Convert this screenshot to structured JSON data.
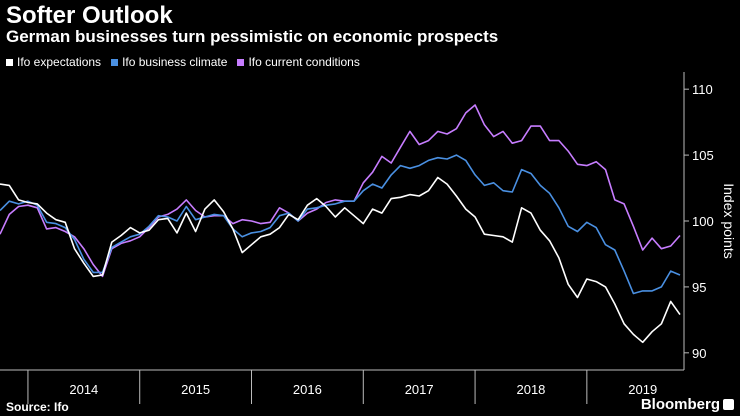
{
  "title": "Softer Outlook",
  "subtitle": "German businesses turn pessimistic on economic prospects",
  "source": "Source: Ifo",
  "logo": "Bloomberg",
  "chart_data": {
    "type": "line",
    "title": "Softer Outlook",
    "subtitle": "German businesses turn pessimistic on economic prospects",
    "ylabel": "Index points",
    "xlabel": "",
    "ylim": [
      89,
      111
    ],
    "yticks": [
      90,
      95,
      100,
      105,
      110
    ],
    "grid": false,
    "legend_position": "top-left",
    "x_start": "2013-10",
    "x_end": "2019-08",
    "year_labels": [
      "2014",
      "2015",
      "2016",
      "2017",
      "2018",
      "2019"
    ],
    "series": [
      {
        "name": "Ifo expectations",
        "color": "#ffffff",
        "values": [
          102.8,
          102.7,
          101.6,
          101.4,
          101.3,
          100.6,
          100.1,
          99.9,
          97.9,
          96.8,
          95.8,
          95.9,
          98.4,
          98.9,
          99.5,
          99.1,
          99.3,
          100.1,
          100.2,
          99.1,
          100.6,
          99.2,
          100.9,
          101.6,
          100.7,
          99.4,
          97.6,
          98.2,
          98.8,
          99.0,
          99.5,
          100.5,
          100.1,
          101.2,
          101.7,
          101.1,
          100.3,
          101.0,
          100.4,
          99.8,
          100.9,
          100.6,
          101.7,
          101.8,
          102.0,
          101.9,
          102.3,
          103.3,
          102.8,
          101.9,
          100.9,
          100.3,
          99.0,
          98.9,
          98.8,
          98.4,
          101.0,
          100.6,
          99.3,
          98.5,
          97.2,
          95.2,
          94.2,
          95.6,
          95.4,
          95.0,
          93.7,
          92.2,
          91.4,
          90.8,
          91.6,
          92.2,
          93.9,
          92.9
        ]
      },
      {
        "name": "Ifo business climate",
        "color": "#4a90e2",
        "values": [
          100.8,
          101.5,
          101.3,
          101.5,
          101.2,
          99.9,
          99.8,
          99.5,
          98.6,
          97.1,
          96.1,
          96.1,
          98.0,
          98.4,
          98.8,
          99.0,
          99.6,
          100.4,
          100.3,
          100.0,
          101.1,
          100.1,
          100.3,
          100.5,
          100.4,
          99.4,
          98.8,
          99.1,
          99.2,
          99.5,
          100.4,
          100.6,
          100.0,
          100.9,
          101.0,
          101.2,
          101.3,
          101.5,
          101.5,
          102.3,
          102.8,
          102.5,
          103.5,
          104.2,
          104.0,
          104.2,
          104.6,
          104.8,
          104.7,
          105.0,
          104.6,
          103.5,
          102.7,
          102.9,
          102.3,
          102.2,
          103.9,
          103.6,
          102.7,
          102.1,
          101.0,
          99.6,
          99.2,
          99.9,
          99.5,
          98.2,
          97.8,
          96.2,
          94.5,
          94.7,
          94.7,
          95.0,
          96.2,
          95.9
        ]
      },
      {
        "name": "Ifo current conditions",
        "color": "#c77dff",
        "values": [
          99.0,
          100.5,
          101.1,
          101.2,
          101.0,
          99.4,
          99.5,
          99.2,
          98.8,
          97.9,
          96.7,
          95.8,
          97.9,
          98.3,
          98.5,
          98.8,
          99.5,
          100.3,
          100.5,
          100.9,
          101.6,
          100.8,
          100.3,
          100.4,
          100.4,
          99.8,
          100.1,
          100.0,
          99.8,
          99.9,
          101.0,
          100.6,
          100.0,
          100.6,
          100.9,
          101.4,
          101.6,
          101.5,
          101.5,
          102.9,
          103.7,
          104.9,
          104.4,
          105.6,
          106.8,
          105.8,
          106.1,
          106.8,
          106.6,
          107.0,
          108.2,
          108.8,
          107.3,
          106.4,
          106.8,
          105.9,
          106.1,
          107.2,
          107.2,
          106.1,
          106.1,
          105.3,
          104.3,
          104.2,
          104.5,
          103.9,
          101.6,
          101.3,
          99.6,
          97.8,
          98.7,
          97.9,
          98.1,
          98.9
        ]
      }
    ]
  }
}
